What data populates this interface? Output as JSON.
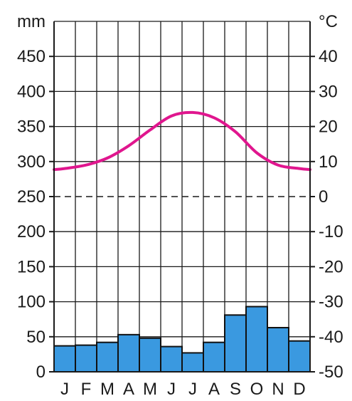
{
  "chart_data": {
    "type": "bar",
    "categories": [
      "J",
      "F",
      "M",
      "A",
      "M",
      "J",
      "J",
      "A",
      "S",
      "O",
      "N",
      "D"
    ],
    "left_axis": {
      "unit": "mm",
      "ylim": [
        0,
        500
      ],
      "ticks": [
        0,
        50,
        100,
        150,
        200,
        250,
        300,
        350,
        400,
        450
      ]
    },
    "right_axis": {
      "unit": "°C",
      "ylim": [
        -50,
        50
      ],
      "ticks": [
        -50,
        -40,
        -30,
        -20,
        -10,
        0,
        10,
        20,
        30,
        40
      ],
      "zero_reference_line": true
    },
    "series": [
      {
        "kind": "bar",
        "axis": "left",
        "values": [
          37,
          38,
          42,
          53,
          48,
          36,
          27,
          42,
          81,
          93,
          63,
          44
        ],
        "color": "#3a99e0"
      },
      {
        "kind": "line",
        "axis": "right",
        "values": [
          8,
          9,
          11,
          14.5,
          19,
          23,
          24,
          22.5,
          18.5,
          12.5,
          9,
          8
        ],
        "color": "#e0168e"
      }
    ],
    "grid": true
  }
}
